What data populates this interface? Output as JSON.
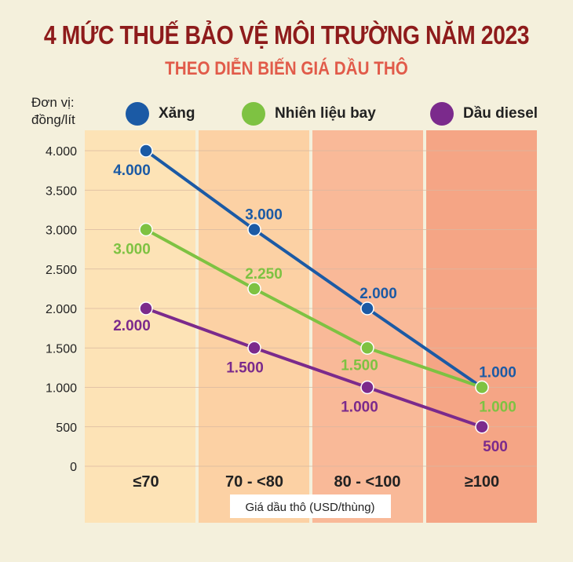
{
  "title": "4 MỨC THUẾ BẢO VỆ MÔI TRƯỜNG NĂM 2023",
  "subtitle": "THEO DIỄN BIẾN GIÁ DẦU THÔ",
  "unit_label_line1": "Đơn vị:",
  "unit_label_line2": "đồng/lít",
  "colors": {
    "background": "#f4f0dc",
    "title": "#8e1b1b",
    "subtitle": "#e15b4a",
    "band_colors": [
      "#fde3b6",
      "#fcd1a4",
      "#f9b998",
      "#f5a585"
    ],
    "xang": "#1b5aa5",
    "nhien_lieu_bay": "#7ec242",
    "dau_diesel": "#7b2a8c"
  },
  "chart_data": {
    "type": "line",
    "title": "4 MỨC THUẾ BẢO VỆ MÔI TRƯỜNG NĂM 2023",
    "subtitle": "THEO DIỄN BIẾN GIÁ DẦU THÔ",
    "categories": [
      "≤70",
      "70 - <80",
      "80 - <100",
      "≥100"
    ],
    "xlabel": "Giá dầu thô (USD/thùng)",
    "ylabel": "Đơn vị: đồng/lít",
    "ylim": [
      0,
      4000
    ],
    "yticks": [
      0,
      500,
      1000,
      1500,
      2000,
      2500,
      3000,
      3500,
      4000
    ],
    "ytick_labels": [
      "0",
      "500",
      "1.000",
      "1.500",
      "2.000",
      "2.500",
      "3.000",
      "3.500",
      "4.000"
    ],
    "grid": true,
    "legend_position": "top",
    "series": [
      {
        "name": "Xăng",
        "color": "#1b5aa5",
        "values": [
          4000,
          3000,
          2000,
          1000
        ],
        "labels": [
          "4.000",
          "3.000",
          "2.000",
          "1.000"
        ]
      },
      {
        "name": "Nhiên liệu bay",
        "color": "#7ec242",
        "values": [
          3000,
          2250,
          1500,
          1000
        ],
        "labels": [
          "3.000",
          "2.250",
          "1.500",
          "1.000"
        ]
      },
      {
        "name": "Dầu diesel",
        "color": "#7b2a8c",
        "values": [
          2000,
          1500,
          1000,
          500
        ],
        "labels": [
          "2.000",
          "1.500",
          "1.000",
          "500"
        ]
      }
    ]
  }
}
